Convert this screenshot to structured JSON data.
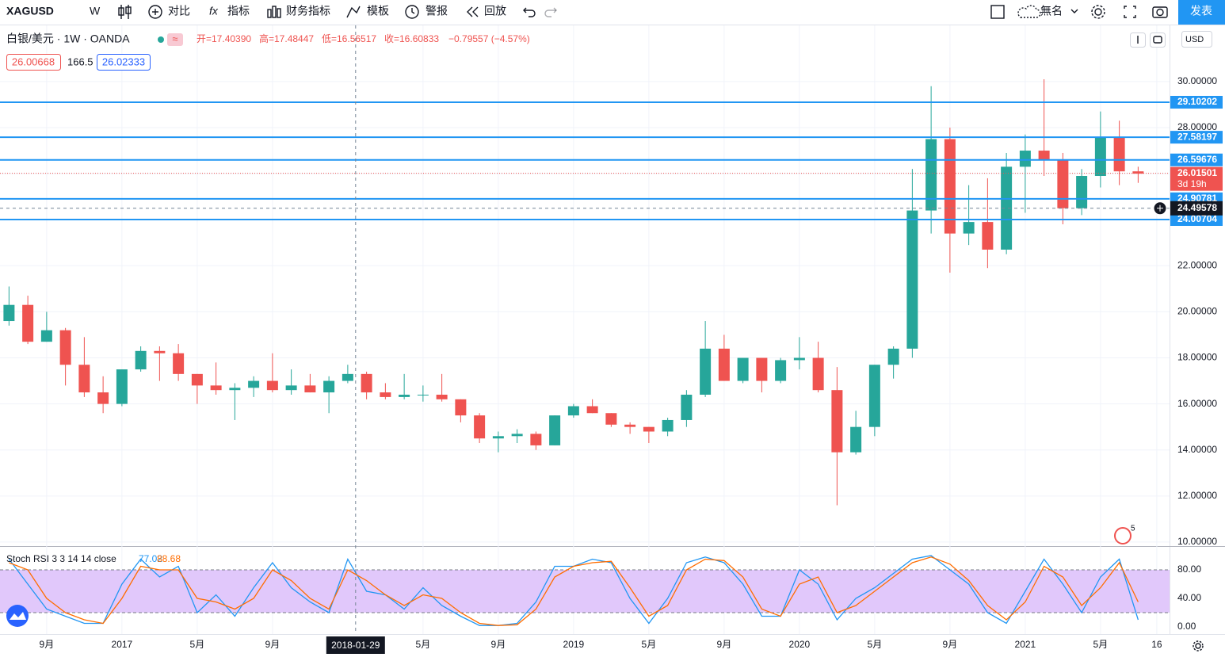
{
  "toolbar": {
    "symbol": "XAGUSD",
    "interval": "W",
    "compare": "对比",
    "indicators": "指标",
    "financials": "财务指标",
    "templates": "模板",
    "alert": "警报",
    "replay": "回放",
    "layout_name": "無名",
    "publish": "发表"
  },
  "legend": {
    "title": "白银/美元 · 1W · OANDA",
    "ohlc": [
      "开=17.40390",
      "高=17.48447",
      "低=16.56517",
      "收=16.60833"
    ],
    "change": "−0.79557 (−4.57%)",
    "indicator_values": [
      "26.00668",
      "166.5",
      "26.02333"
    ],
    "currency": "USD",
    "events": "5"
  },
  "chart_data": [
    {
      "type": "candlestick",
      "x": [
        "2016-07",
        "2016-08",
        "2016-09",
        "2016-10",
        "2016-11",
        "2016-12",
        "2017-01",
        "2017-02",
        "2017-03",
        "2017-04",
        "2017-05",
        "2017-06",
        "2017-07",
        "2017-08",
        "2017-09",
        "2017-10",
        "2017-11",
        "2017-12",
        "2018-01",
        "2018-02",
        "2018-03",
        "2018-04",
        "2018-05",
        "2018-06",
        "2018-07",
        "2018-08",
        "2018-09",
        "2018-10",
        "2018-11",
        "2018-12",
        "2019-01",
        "2019-02",
        "2019-03",
        "2019-04",
        "2019-05",
        "2019-06",
        "2019-07",
        "2019-08",
        "2019-09",
        "2019-10",
        "2019-11",
        "2019-12",
        "2020-01",
        "2020-02",
        "2020-03",
        "2020-04",
        "2020-05",
        "2020-06",
        "2020-07",
        "2020-08",
        "2020-09",
        "2020-10",
        "2020-11",
        "2020-12",
        "2021-01",
        "2021-02",
        "2021-03",
        "2021-04",
        "2021-05",
        "2021-06",
        "2021-07"
      ],
      "open": [
        19.6,
        20.3,
        18.7,
        19.2,
        17.7,
        16.5,
        16.0,
        17.5,
        18.3,
        18.2,
        17.3,
        16.8,
        16.6,
        16.7,
        17.0,
        16.6,
        16.8,
        16.5,
        17.0,
        17.3,
        16.5,
        16.3,
        16.4,
        16.4,
        16.2,
        15.5,
        14.5,
        14.6,
        14.7,
        14.2,
        15.5,
        15.9,
        15.6,
        15.1,
        15.0,
        14.8,
        15.3,
        16.4,
        18.4,
        17.0,
        18.0,
        17.0,
        17.9,
        18.0,
        16.6,
        13.9,
        15.0,
        17.7,
        18.4,
        24.4,
        27.5,
        23.4,
        23.9,
        22.7,
        26.3,
        27.0,
        26.6,
        24.5,
        25.9,
        27.6,
        26.1
      ],
      "high": [
        21.1,
        20.7,
        20.0,
        19.3,
        18.9,
        17.2,
        17.5,
        18.5,
        18.5,
        18.6,
        17.3,
        17.8,
        16.9,
        17.2,
        18.2,
        17.5,
        17.3,
        17.2,
        17.7,
        17.4,
        16.9,
        17.3,
        16.8,
        17.3,
        16.2,
        15.6,
        14.8,
        14.9,
        14.8,
        15.5,
        16.0,
        16.2,
        15.6,
        15.2,
        15.0,
        15.4,
        16.6,
        19.6,
        19.0,
        18.0,
        18.0,
        18.0,
        18.9,
        18.7,
        17.6,
        15.7,
        17.7,
        18.5,
        26.2,
        29.8,
        28.0,
        25.5,
        25.8,
        26.9,
        27.7,
        30.1,
        26.9,
        26.2,
        28.7,
        28.3,
        26.3
      ],
      "low": [
        19.4,
        18.6,
        18.7,
        16.8,
        16.3,
        15.6,
        15.9,
        17.4,
        17.0,
        17.0,
        16.0,
        16.4,
        15.3,
        16.3,
        16.5,
        16.4,
        16.5,
        15.6,
        16.9,
        16.2,
        16.2,
        16.2,
        16.1,
        16.1,
        15.2,
        14.3,
        13.9,
        14.3,
        14.0,
        14.2,
        15.4,
        15.6,
        15.0,
        14.7,
        14.3,
        14.6,
        15.0,
        16.3,
        17.0,
        16.9,
        16.5,
        16.9,
        17.5,
        16.5,
        11.6,
        13.8,
        14.6,
        17.1,
        18.0,
        23.4,
        21.7,
        22.9,
        21.9,
        22.5,
        24.3,
        25.9,
        23.8,
        24.2,
        25.4,
        25.5,
        25.6
      ],
      "close": [
        20.3,
        18.7,
        19.2,
        17.7,
        16.5,
        16.0,
        17.5,
        18.3,
        18.2,
        17.3,
        16.8,
        16.6,
        16.7,
        17.0,
        16.6,
        16.8,
        16.5,
        17.0,
        17.3,
        16.5,
        16.3,
        16.4,
        16.4,
        16.2,
        15.5,
        14.5,
        14.6,
        14.7,
        14.2,
        15.5,
        15.9,
        15.6,
        15.1,
        15.0,
        14.8,
        15.3,
        16.4,
        18.4,
        17.0,
        18.0,
        17.0,
        17.9,
        18.0,
        16.6,
        13.9,
        15.0,
        17.7,
        18.4,
        24.4,
        27.5,
        23.4,
        23.9,
        22.7,
        26.3,
        27.0,
        26.6,
        24.5,
        25.9,
        27.6,
        26.1,
        26.0
      ],
      "up_color": "#26a69a",
      "down_color": "#ef5350",
      "ylim": [
        9.86,
        32.44
      ],
      "yticks": [
        {
          "value": 10,
          "label": "10.00000"
        },
        {
          "value": 12,
          "label": "12.00000"
        },
        {
          "value": 14,
          "label": "14.00000"
        },
        {
          "value": 16,
          "label": "16.00000"
        },
        {
          "value": 18,
          "label": "18.00000"
        },
        {
          "value": 20,
          "label": "20.00000"
        },
        {
          "value": 22,
          "label": "22.00000"
        },
        {
          "value": 24,
          "label": "24.00000"
        },
        {
          "value": 26,
          "label": "26.00000"
        },
        {
          "value": 28,
          "label": "28.00000"
        },
        {
          "value": 30,
          "label": "30.00000"
        }
      ],
      "xticks": [
        {
          "value": "2016-09",
          "label": "9月"
        },
        {
          "value": "2017-01",
          "label": "2017"
        },
        {
          "value": "2017-05",
          "label": "5月"
        },
        {
          "value": "2017-09",
          "label": "9月"
        },
        {
          "value": "2018-05",
          "label": "5月"
        },
        {
          "value": "2018-09",
          "label": "9月"
        },
        {
          "value": "2019-01",
          "label": "2019"
        },
        {
          "value": "2019-05",
          "label": "5月"
        },
        {
          "value": "2019-09",
          "label": "9月"
        },
        {
          "value": "2020-01",
          "label": "2020"
        },
        {
          "value": "2020-05",
          "label": "5月"
        },
        {
          "value": "2020-09",
          "label": "9月"
        },
        {
          "value": "2021-01",
          "label": "2021"
        },
        {
          "value": "2021-05",
          "label": "5月"
        },
        {
          "value": "2021-08-16",
          "label": "16"
        }
      ],
      "price_lines": [
        29.10202,
        27.58197,
        26.59676,
        24.90781,
        24.00704
      ],
      "line_color": "#2196f3",
      "last_price": 26.01501,
      "countdown": "3d 19h",
      "crosshair": {
        "y": 24.49578,
        "x": "2018-01-29"
      },
      "grid": true
    },
    {
      "type": "line",
      "title": "Stoch RSI 3 3 14 14 close",
      "x": [
        "2016-07",
        "2016-08",
        "2016-09",
        "2016-10",
        "2016-11",
        "2016-12",
        "2017-01",
        "2017-02",
        "2017-03",
        "2017-04",
        "2017-05",
        "2017-06",
        "2017-07",
        "2017-08",
        "2017-09",
        "2017-10",
        "2017-11",
        "2017-12",
        "2018-01",
        "2018-02",
        "2018-03",
        "2018-04",
        "2018-05",
        "2018-06",
        "2018-07",
        "2018-08",
        "2018-09",
        "2018-10",
        "2018-11",
        "2018-12",
        "2019-01",
        "2019-02",
        "2019-03",
        "2019-04",
        "2019-05",
        "2019-06",
        "2019-07",
        "2019-08",
        "2019-09",
        "2019-10",
        "2019-11",
        "2019-12",
        "2020-01",
        "2020-02",
        "2020-03",
        "2020-04",
        "2020-05",
        "2020-06",
        "2020-07",
        "2020-08",
        "2020-09",
        "2020-10",
        "2020-11",
        "2020-12",
        "2021-01",
        "2021-02",
        "2021-03",
        "2021-04",
        "2021-05",
        "2021-06",
        "2021-07"
      ],
      "series": [
        {
          "color": "#2196f3",
          "current": 77.02,
          "values": [
            95,
            60,
            25,
            15,
            5,
            5,
            60,
            95,
            70,
            85,
            20,
            45,
            15,
            55,
            90,
            55,
            35,
            20,
            95,
            50,
            45,
            25,
            55,
            30,
            15,
            2,
            2,
            5,
            35,
            85,
            85,
            95,
            90,
            40,
            5,
            40,
            90,
            98,
            90,
            60,
            15,
            15,
            80,
            60,
            10,
            40,
            55,
            75,
            95,
            100,
            80,
            60,
            20,
            5,
            50,
            95,
            60,
            20,
            70,
            95,
            10
          ]
        },
        {
          "color": "#ff6d00",
          "current": 88.68,
          "values": [
            90,
            80,
            40,
            20,
            10,
            5,
            40,
            85,
            80,
            80,
            40,
            35,
            25,
            40,
            80,
            65,
            40,
            25,
            80,
            65,
            45,
            30,
            45,
            40,
            20,
            5,
            2,
            3,
            25,
            70,
            85,
            90,
            92,
            55,
            15,
            30,
            80,
            95,
            93,
            70,
            25,
            15,
            60,
            70,
            20,
            30,
            50,
            70,
            90,
            98,
            88,
            65,
            30,
            10,
            35,
            85,
            70,
            30,
            55,
            90,
            35
          ]
        }
      ],
      "band": [
        20,
        80
      ],
      "band_color": "#e1c8fb",
      "ylim": [
        -10,
        112.2
      ],
      "yticks": [
        {
          "value": 0,
          "label": "0.00"
        },
        {
          "value": 40,
          "label": "40.00"
        },
        {
          "value": 80,
          "label": "80.00"
        }
      ]
    }
  ]
}
